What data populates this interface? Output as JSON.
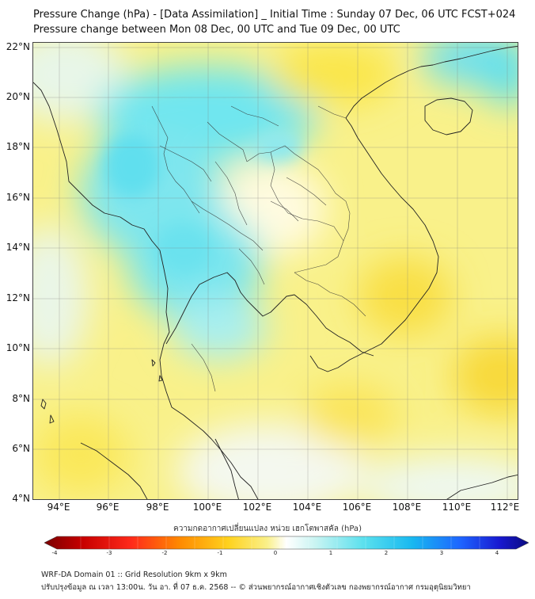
{
  "header": {
    "title_line1": "Pressure Change (hPa) - [Data Assimilation] _ Initial Time : Sunday 07 Dec, 06 UTC FCST+024",
    "title_line2": "Pressure change between Mon 08 Dec, 00 UTC and Tue 09 Dec, 00 UTC"
  },
  "map": {
    "lat_labels": [
      "22°N",
      "20°N",
      "18°N",
      "16°N",
      "14°N",
      "12°N",
      "10°N",
      "8°N",
      "6°N",
      "4°N"
    ],
    "lon_labels": [
      "94°E",
      "96°E",
      "98°E",
      "100°E",
      "102°E",
      "104°E",
      "106°E",
      "108°E",
      "110°E",
      "112°E"
    ],
    "colors": {
      "ocean_yellow": "#fbf27a",
      "cyan_high": "#5ee3ee",
      "coastline": "#222222"
    }
  },
  "colorbar": {
    "label": "ความกดอากาศเปลี่ยนแปลง หน่วย เฮกโตพาสคัล (hPa)",
    "ticks": [
      "-4",
      "-3",
      "-2",
      "-1",
      "0",
      "1",
      "2",
      "3",
      "4"
    ],
    "range": [
      -4,
      4
    ]
  },
  "footer": {
    "line1": "WRF-DA Domain 01 :: Grid Resolution 9km x 9km",
    "line2": "ปรับปรุงข้อมูล ณ เวลา 13:00น. วัน อา. ที่ 07 ธ.ค. 2568 -- © ส่วนพยากรณ์อากาศเชิงตัวเลข กองพยากรณ์อากาศ กรมอุตุนิยมวิทยา"
  }
}
